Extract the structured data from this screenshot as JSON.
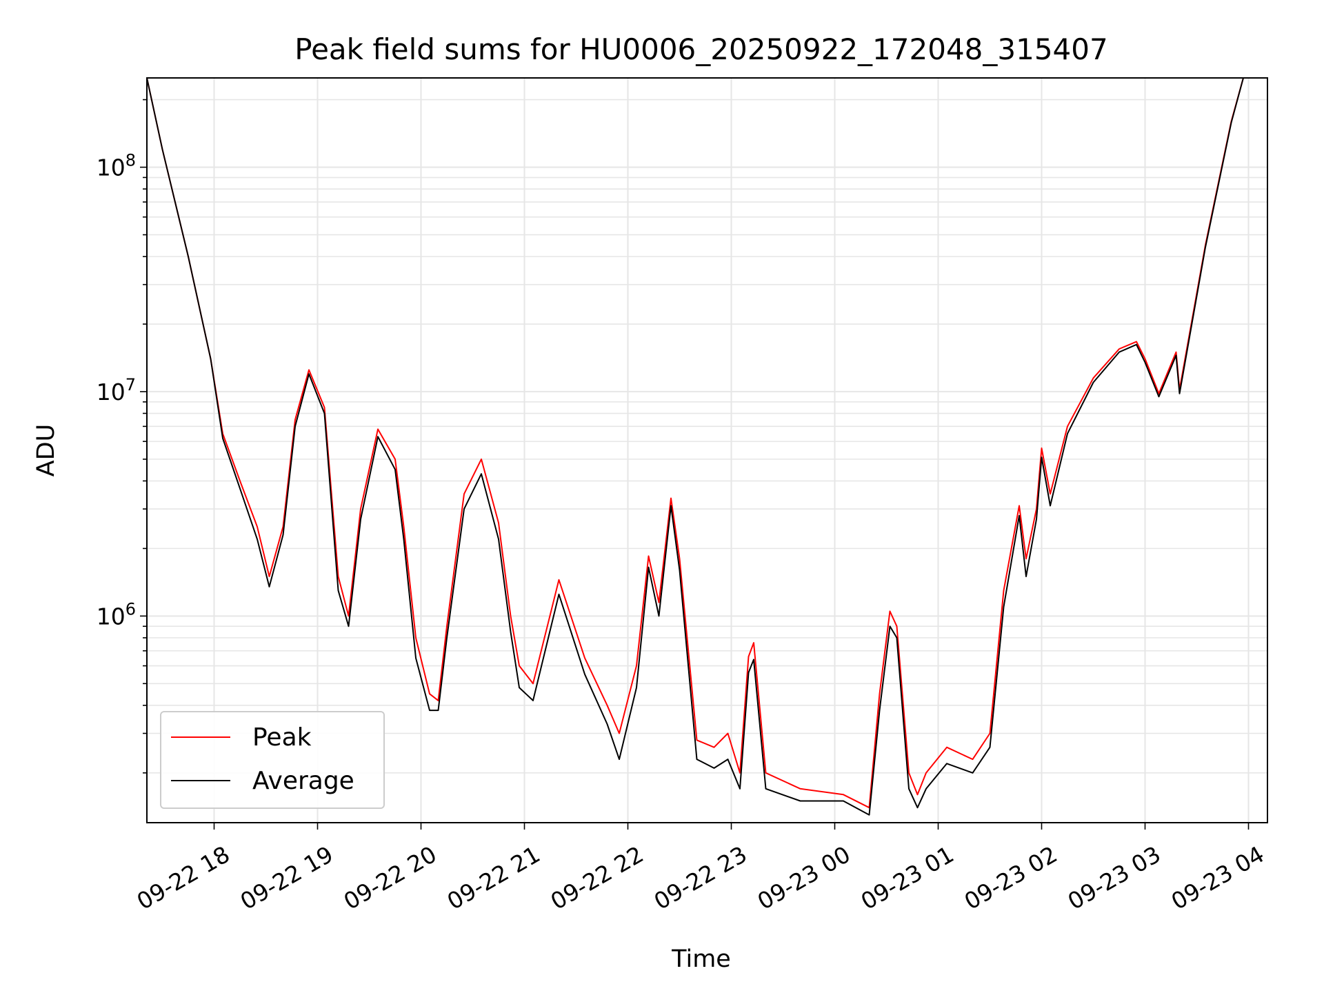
{
  "chart_data": {
    "type": "line",
    "title": "Peak field sums for HU0006_20250922_172048_315407",
    "xlabel": "Time",
    "ylabel": "ADU",
    "yscale": "log",
    "ylim": [
      120000,
      250000000
    ],
    "xlim": [
      "2025-09-22 17:21",
      "2025-09-23 04:11"
    ],
    "grid": true,
    "legend_position": "lower-left",
    "x_tick_labels": [
      "09-22 18",
      "09-22 19",
      "09-22 20",
      "09-22 21",
      "09-22 22",
      "09-22 23",
      "09-23 00",
      "09-23 01",
      "09-23 02",
      "09-23 03",
      "09-23 04"
    ],
    "x_ticks": [
      "2025-09-22 18:00",
      "2025-09-22 19:00",
      "2025-09-22 20:00",
      "2025-09-22 21:00",
      "2025-09-22 22:00",
      "2025-09-22 23:00",
      "2025-09-23 00:00",
      "2025-09-23 01:00",
      "2025-09-23 02:00",
      "2025-09-23 03:00",
      "2025-09-23 04:00"
    ],
    "y_tick_labels": [
      {
        "value": 1000000,
        "base": "10",
        "exp": "6"
      },
      {
        "value": 10000000,
        "base": "10",
        "exp": "7"
      },
      {
        "value": 100000000,
        "base": "10",
        "exp": "8"
      }
    ],
    "series": [
      {
        "name": "Peak",
        "color": "#ff0000",
        "x": [
          "2025-09-22 17:21",
          "2025-09-22 17:30",
          "2025-09-22 17:45",
          "2025-09-22 17:58",
          "2025-09-22 18:05",
          "2025-09-22 18:15",
          "2025-09-22 18:25",
          "2025-09-22 18:32",
          "2025-09-22 18:40",
          "2025-09-22 18:47",
          "2025-09-22 18:55",
          "2025-09-22 19:04",
          "2025-09-22 19:12",
          "2025-09-22 19:18",
          "2025-09-22 19:25",
          "2025-09-22 19:35",
          "2025-09-22 19:45",
          "2025-09-22 19:50",
          "2025-09-22 19:57",
          "2025-09-22 20:05",
          "2025-09-22 20:10",
          "2025-09-22 20:15",
          "2025-09-22 20:25",
          "2025-09-22 20:35",
          "2025-09-22 20:45",
          "2025-09-22 20:52",
          "2025-09-22 20:57",
          "2025-09-22 21:05",
          "2025-09-22 21:20",
          "2025-09-22 21:35",
          "2025-09-22 21:48",
          "2025-09-22 21:55",
          "2025-09-22 22:05",
          "2025-09-22 22:12",
          "2025-09-22 22:18",
          "2025-09-22 22:25",
          "2025-09-22 22:30",
          "2025-09-22 22:40",
          "2025-09-22 22:50",
          "2025-09-22 22:58",
          "2025-09-22 23:05",
          "2025-09-22 23:10",
          "2025-09-22 23:13",
          "2025-09-22 23:20",
          "2025-09-22 23:40",
          "2025-09-23 00:05",
          "2025-09-23 00:20",
          "2025-09-23 00:26",
          "2025-09-23 00:32",
          "2025-09-23 00:36",
          "2025-09-23 00:43",
          "2025-09-23 00:48",
          "2025-09-23 00:53",
          "2025-09-23 01:05",
          "2025-09-23 01:20",
          "2025-09-23 01:30",
          "2025-09-23 01:38",
          "2025-09-23 01:47",
          "2025-09-23 01:51",
          "2025-09-23 01:57",
          "2025-09-23 02:00",
          "2025-09-23 02:05",
          "2025-09-23 02:15",
          "2025-09-23 02:30",
          "2025-09-23 02:45",
          "2025-09-23 02:55",
          "2025-09-23 03:00",
          "2025-09-23 03:08",
          "2025-09-23 03:18",
          "2025-09-23 03:20",
          "2025-09-23 03:35",
          "2025-09-23 03:50",
          "2025-09-23 03:57"
        ],
        "values": [
          250000000,
          120000000,
          40000000,
          14000000,
          6500000,
          4000000,
          2500000,
          1500000,
          2500000,
          7500000,
          12500000,
          8500000,
          1500000,
          1000000,
          3000000,
          6800000,
          5000000,
          2500000,
          800000,
          450000,
          420000,
          900000,
          3500000,
          5000000,
          2600000,
          1000000,
          600000,
          500000,
          1450000,
          650000,
          400000,
          300000,
          600000,
          1850000,
          1150000,
          3350000,
          1800000,
          280000,
          260000,
          300000,
          200000,
          660000,
          760000,
          200000,
          170000,
          160000,
          140000,
          450000,
          1050000,
          900000,
          200000,
          160000,
          200000,
          260000,
          230000,
          300000,
          1300000,
          3100000,
          1800000,
          3000000,
          5600000,
          3500000,
          7000000,
          11500000,
          15500000,
          16700000,
          14000000,
          9800000,
          15000000,
          10200000,
          45000000,
          160000000,
          250000000
        ]
      },
      {
        "name": "Average",
        "color": "#000000",
        "x": [
          "2025-09-22 17:21",
          "2025-09-22 17:30",
          "2025-09-22 17:45",
          "2025-09-22 17:58",
          "2025-09-22 18:05",
          "2025-09-22 18:15",
          "2025-09-22 18:25",
          "2025-09-22 18:32",
          "2025-09-22 18:40",
          "2025-09-22 18:47",
          "2025-09-22 18:55",
          "2025-09-22 19:04",
          "2025-09-22 19:12",
          "2025-09-22 19:18",
          "2025-09-22 19:25",
          "2025-09-22 19:35",
          "2025-09-22 19:45",
          "2025-09-22 19:50",
          "2025-09-22 19:57",
          "2025-09-22 20:05",
          "2025-09-22 20:10",
          "2025-09-22 20:15",
          "2025-09-22 20:25",
          "2025-09-22 20:35",
          "2025-09-22 20:45",
          "2025-09-22 20:52",
          "2025-09-22 20:57",
          "2025-09-22 21:05",
          "2025-09-22 21:20",
          "2025-09-22 21:35",
          "2025-09-22 21:48",
          "2025-09-22 21:55",
          "2025-09-22 22:05",
          "2025-09-22 22:12",
          "2025-09-22 22:18",
          "2025-09-22 22:25",
          "2025-09-22 22:30",
          "2025-09-22 22:40",
          "2025-09-22 22:50",
          "2025-09-22 22:58",
          "2025-09-22 23:05",
          "2025-09-22 23:10",
          "2025-09-22 23:13",
          "2025-09-22 23:20",
          "2025-09-22 23:40",
          "2025-09-23 00:05",
          "2025-09-23 00:20",
          "2025-09-23 00:26",
          "2025-09-23 00:32",
          "2025-09-23 00:36",
          "2025-09-23 00:43",
          "2025-09-23 00:48",
          "2025-09-23 00:53",
          "2025-09-23 01:05",
          "2025-09-23 01:20",
          "2025-09-23 01:30",
          "2025-09-23 01:38",
          "2025-09-23 01:47",
          "2025-09-23 01:51",
          "2025-09-23 01:57",
          "2025-09-23 02:00",
          "2025-09-23 02:05",
          "2025-09-23 02:15",
          "2025-09-23 02:30",
          "2025-09-23 02:45",
          "2025-09-23 02:55",
          "2025-09-23 03:00",
          "2025-09-23 03:08",
          "2025-09-23 03:18",
          "2025-09-23 03:20",
          "2025-09-23 03:35",
          "2025-09-23 03:50",
          "2025-09-23 03:57"
        ],
        "values": [
          250000000,
          120000000,
          40000000,
          14000000,
          6200000,
          3700000,
          2200000,
          1350000,
          2300000,
          7000000,
          12000000,
          8000000,
          1300000,
          900000,
          2700000,
          6300000,
          4500000,
          2200000,
          650000,
          380000,
          380000,
          800000,
          3000000,
          4300000,
          2200000,
          850000,
          480000,
          420000,
          1250000,
          550000,
          330000,
          230000,
          480000,
          1650000,
          1000000,
          3100000,
          1600000,
          230000,
          210000,
          230000,
          170000,
          560000,
          640000,
          170000,
          150000,
          150000,
          130000,
          380000,
          900000,
          800000,
          170000,
          140000,
          170000,
          220000,
          200000,
          260000,
          1100000,
          2800000,
          1500000,
          2700000,
          5100000,
          3100000,
          6500000,
          11000000,
          15000000,
          16200000,
          13500000,
          9500000,
          14500000,
          9800000,
          44000000,
          158000000,
          250000000
        ]
      }
    ]
  }
}
